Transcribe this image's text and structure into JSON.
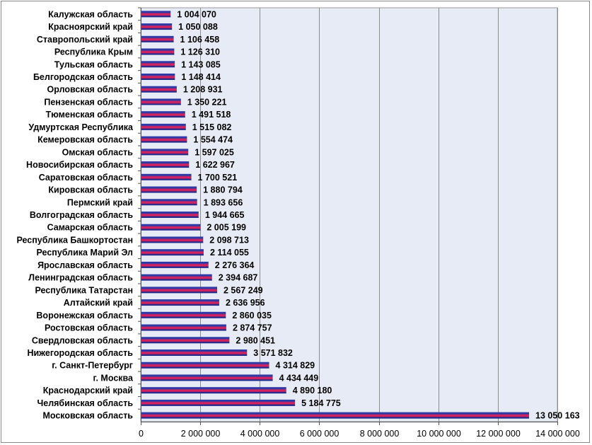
{
  "chart_data": {
    "type": "bar",
    "orientation": "horizontal",
    "categories": [
      "Калужская область",
      "Красноярский край",
      "Ставропольский край",
      "Республика Крым",
      "Тульская область",
      "Белгородская область",
      "Орловская область",
      "Пензенская область",
      "Тюменская область",
      "Удмуртская Республика",
      "Кемеровская область",
      "Омская область",
      "Новосибирская область",
      "Саратовская область",
      "Кировская область",
      "Пермский край",
      "Волгоградская область",
      "Самарская область",
      "Республика Башкортостан",
      "Республика Марий Эл",
      "Ярославская область",
      "Ленинградская область",
      "Республика Татарстан",
      "Алтайский край",
      "Воронежская область",
      "Ростовская область",
      "Свердловская область",
      "Нижегородская область",
      "г. Санкт-Петербург",
      "г. Москва",
      "Краснодарский край",
      "Челябинская область",
      "Московская область"
    ],
    "values": [
      1004070,
      1050088,
      1106458,
      1126310,
      1143085,
      1148414,
      1208931,
      1350221,
      1491518,
      1515082,
      1554474,
      1597025,
      1622967,
      1700521,
      1880794,
      1893656,
      1944665,
      2005199,
      2098713,
      2114055,
      2276364,
      2394687,
      2567249,
      2636956,
      2860035,
      2874757,
      2980451,
      3571832,
      4314829,
      4434449,
      4890180,
      5184775,
      13050163
    ],
    "value_labels": [
      "1 004 070",
      "1 050 088",
      "1 106 458",
      "1 126 310",
      "1 143 085",
      "1 148 414",
      "1 208 931",
      "1 350 221",
      "1 491 518",
      "1 515 082",
      "1 554 474",
      "1 597 025",
      "1 622 967",
      "1 700 521",
      "1 880 794",
      "1 893 656",
      "1 944 665",
      "2 005 199",
      "2 098 713",
      "2 114 055",
      "2 276 364",
      "2 394 687",
      "2 567 249",
      "2 636 956",
      "2 860 035",
      "2 874 757",
      "2 980 451",
      "3 571 832",
      "4 314 829",
      "4 434 449",
      "4 890 180",
      "5 184 775",
      "13 050 163"
    ],
    "xlim": [
      0,
      14000000
    ],
    "x_ticks": [
      0,
      2000000,
      4000000,
      6000000,
      8000000,
      10000000,
      12000000,
      14000000
    ],
    "x_tick_labels": [
      "0",
      "2 000 000",
      "4 000 000",
      "6 000 000",
      "8 000 000",
      "10 000 000",
      "12 000 000",
      "14 000 000"
    ],
    "title": "",
    "xlabel": "",
    "ylabel": "",
    "grid": "vertical",
    "legend": "none",
    "colors": {
      "plot_background": "#e6ebf5",
      "gridline": "#8c8c8c",
      "bar_top": "#2e3aa6",
      "bar_mid": "#d4225f",
      "bar_bottom": "#1e2a8c"
    }
  }
}
